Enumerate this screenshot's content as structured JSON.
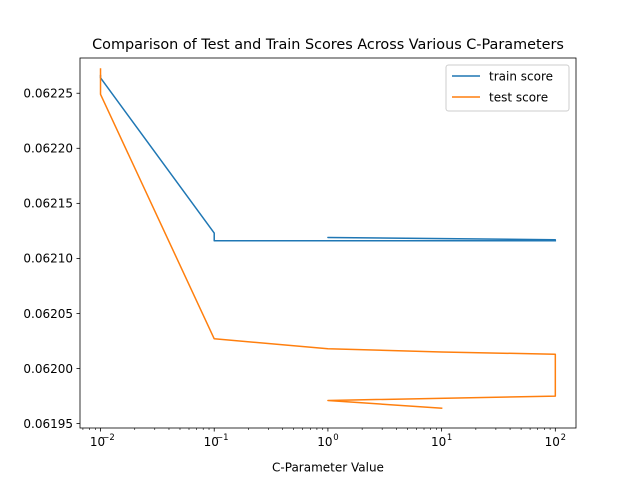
{
  "chart_data": {
    "type": "line",
    "title": "Comparison of Test and Train Scores Across Various C-Parameters",
    "xlabel": "C-Parameter Value",
    "ylabel": "",
    "xscale": "log",
    "xlim": [
      0.0066,
      152
    ],
    "ylim": [
      0.061946,
      0.062282
    ],
    "x_ticks": [
      0.01,
      0.1,
      1,
      10,
      100
    ],
    "x_tick_labels": [
      "10",
      "10",
      "10",
      "10",
      "10"
    ],
    "x_tick_exponents": [
      "−2",
      "−1",
      "0",
      "1",
      "2"
    ],
    "y_ticks": [
      0.06195,
      0.062,
      0.06205,
      0.0621,
      0.06215,
      0.0622,
      0.06225
    ],
    "y_tick_labels": [
      "0.06195",
      "0.06200",
      "0.06205",
      "0.06210",
      "0.06215",
      "0.06220",
      "0.06225"
    ],
    "legend": {
      "position": "upper right"
    },
    "grid": false,
    "series": [
      {
        "name": "train score",
        "color": "#1f77b4",
        "x": [
          0.01,
          0.01,
          0.1,
          0.1,
          100,
          100,
          1,
          10,
          100,
          100
        ],
        "y": [
          0.062266,
          0.062264,
          0.062123,
          0.062116,
          0.062116,
          0.062117,
          0.062119,
          0.062118,
          0.062117,
          0.062116
        ]
      },
      {
        "name": "test score",
        "color": "#ff7f0e",
        "x": [
          0.01,
          0.01,
          0.1,
          1,
          10,
          100,
          100,
          1,
          10
        ],
        "y": [
          0.062272,
          0.062249,
          0.062027,
          0.062018,
          0.062015,
          0.062013,
          0.061975,
          0.061971,
          0.061964
        ]
      }
    ]
  }
}
